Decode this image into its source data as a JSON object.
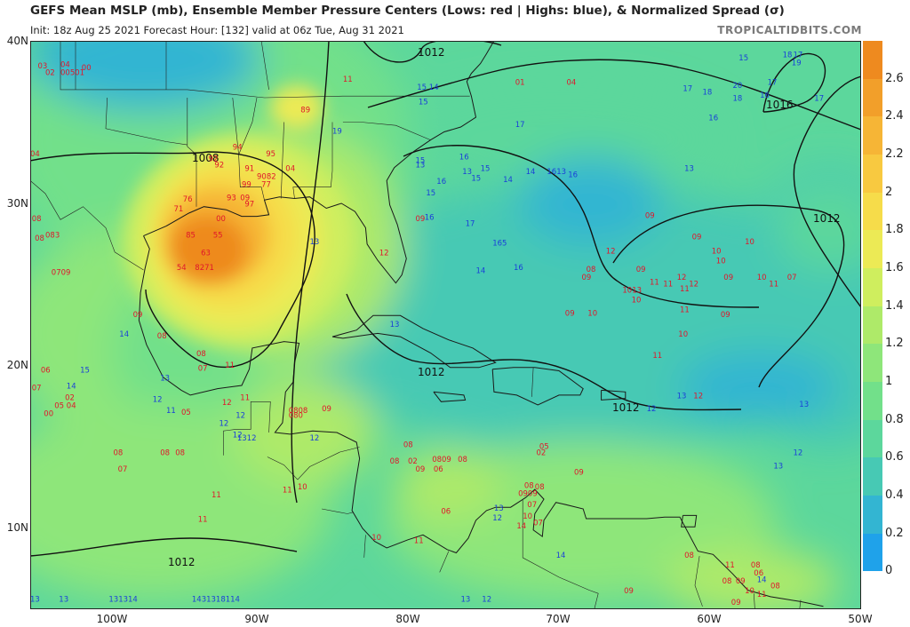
{
  "header": {
    "title": "GEFS Mean MSLP (mb), Ensemble Member Pressure Centers (Lows: red | Highs: blue), & Normalized Spread (σ)",
    "subtitle": "Init: 18z Aug 25 2021    Forecast Hour: [132]    valid at 06z Tue, Aug 31 2021",
    "brand": "TROPICALTIDBITS.COM"
  },
  "axes": {
    "lat_labels": [
      "40N",
      "30N",
      "20N",
      "10N"
    ],
    "lon_labels": [
      "100W",
      "90W",
      "80W",
      "70W",
      "60W",
      "50W"
    ]
  },
  "colorbar": {
    "labels": [
      "2.6",
      "2.4",
      "2.2",
      "2",
      "1.8",
      "1.6",
      "1.4",
      "1.2",
      "1",
      "0.8",
      "0.6",
      "0.4",
      "0.2",
      "0"
    ],
    "colors": [
      "#ee8a1f",
      "#f29f2a",
      "#f6b536",
      "#f8c940",
      "#f6dc4a",
      "#ecea55",
      "#cfee5e",
      "#aeea69",
      "#8ee67a",
      "#72e08a",
      "#5cd79c",
      "#47c9b4",
      "#33b5d2",
      "#1fa2ea",
      "#ffffff"
    ]
  },
  "isobars": [
    {
      "label": "1012",
      "where": "northeast of Carolinas"
    },
    {
      "label": "1008",
      "where": "central Gulf of Mexico"
    },
    {
      "label": "1016",
      "where": "northeast Atlantic high"
    },
    {
      "label": "1012",
      "where": "central Atlantic"
    },
    {
      "label": "1012",
      "where": "Caribbean north"
    },
    {
      "label": "1012",
      "where": "Caribbean east"
    },
    {
      "label": "1012",
      "where": "eastern Pacific"
    }
  ],
  "lows": [
    {
      "text": "03",
      "lon": -104.5,
      "lat": 38.3
    },
    {
      "text": "04",
      "lon": -103.0,
      "lat": 38.4
    },
    {
      "text": "00",
      "lon": -101.6,
      "lat": 38.2
    },
    {
      "text": "02",
      "lon": -104.0,
      "lat": 37.9
    },
    {
      "text": "00501",
      "lon": -103.0,
      "lat": 37.9
    },
    {
      "text": "04",
      "lon": -105.0,
      "lat": 32.9
    },
    {
      "text": "08",
      "lon": -104.9,
      "lat": 28.9
    },
    {
      "text": "083",
      "lon": -104.0,
      "lat": 27.9
    },
    {
      "text": "08",
      "lon": -104.7,
      "lat": 27.7
    },
    {
      "text": "0709",
      "lon": -103.6,
      "lat": 25.6
    },
    {
      "text": "11",
      "lon": -84.3,
      "lat": 37.5
    },
    {
      "text": "89",
      "lon": -87.1,
      "lat": 35.6
    },
    {
      "text": "01",
      "lon": -72.9,
      "lat": 37.3
    },
    {
      "text": "04",
      "lon": -69.5,
      "lat": 37.3
    },
    {
      "text": "94",
      "lon": -91.6,
      "lat": 33.3
    },
    {
      "text": "92",
      "lon": -93.2,
      "lat": 32.6
    },
    {
      "text": "92",
      "lon": -92.8,
      "lat": 32.2
    },
    {
      "text": "95",
      "lon": -89.4,
      "lat": 32.9
    },
    {
      "text": "91",
      "lon": -90.8,
      "lat": 32.0
    },
    {
      "text": "04",
      "lon": -88.1,
      "lat": 32.0
    },
    {
      "text": "9082",
      "lon": -90.0,
      "lat": 31.5
    },
    {
      "text": "99",
      "lon": -91.0,
      "lat": 31.0
    },
    {
      "text": "77",
      "lon": -89.7,
      "lat": 31.0
    },
    {
      "text": "76",
      "lon": -94.9,
      "lat": 30.1
    },
    {
      "text": "93",
      "lon": -92.0,
      "lat": 30.2
    },
    {
      "text": "09",
      "lon": -91.1,
      "lat": 30.2
    },
    {
      "text": "97",
      "lon": -90.8,
      "lat": 29.8
    },
    {
      "text": "71",
      "lon": -95.5,
      "lat": 29.5
    },
    {
      "text": "00",
      "lon": -92.7,
      "lat": 28.9
    },
    {
      "text": "85",
      "lon": -94.7,
      "lat": 27.9
    },
    {
      "text": "55",
      "lon": -92.9,
      "lat": 27.9
    },
    {
      "text": "63",
      "lon": -93.7,
      "lat": 26.8
    },
    {
      "text": "54",
      "lon": -95.3,
      "lat": 25.9
    },
    {
      "text": "8271",
      "lon": -94.1,
      "lat": 25.9
    },
    {
      "text": "09",
      "lon": -79.5,
      "lat": 28.9
    },
    {
      "text": "12",
      "lon": -81.9,
      "lat": 26.8
    },
    {
      "text": "09",
      "lon": -98.2,
      "lat": 23.0
    },
    {
      "text": "08",
      "lon": -96.6,
      "lat": 21.7
    },
    {
      "text": "08",
      "lon": -94.0,
      "lat": 20.6
    },
    {
      "text": "07",
      "lon": -93.9,
      "lat": 19.7
    },
    {
      "text": "11",
      "lon": -92.1,
      "lat": 19.9
    },
    {
      "text": "06",
      "lon": -104.3,
      "lat": 19.6
    },
    {
      "text": "07",
      "lon": -104.9,
      "lat": 18.5
    },
    {
      "text": "02",
      "lon": -102.7,
      "lat": 17.9
    },
    {
      "text": "05",
      "lon": -103.4,
      "lat": 17.4
    },
    {
      "text": "04",
      "lon": -102.6,
      "lat": 17.4
    },
    {
      "text": "00",
      "lon": -104.1,
      "lat": 16.9
    },
    {
      "text": "05",
      "lon": -95.0,
      "lat": 17.0
    },
    {
      "text": "12",
      "lon": -92.3,
      "lat": 17.6
    },
    {
      "text": "11",
      "lon": -91.1,
      "lat": 17.9
    },
    {
      "text": "08",
      "lon": -99.5,
      "lat": 14.5
    },
    {
      "text": "08",
      "lon": -96.4,
      "lat": 14.5
    },
    {
      "text": "08",
      "lon": -95.4,
      "lat": 14.5
    },
    {
      "text": "07",
      "lon": -99.2,
      "lat": 13.5
    },
    {
      "text": "11",
      "lon": -93.0,
      "lat": 11.9
    },
    {
      "text": "11",
      "lon": -88.3,
      "lat": 12.2
    },
    {
      "text": "10",
      "lon": -87.3,
      "lat": 12.4
    },
    {
      "text": "11",
      "lon": -93.9,
      "lat": 10.4
    },
    {
      "text": "0808",
      "lon": -87.9,
      "lat": 17.1
    },
    {
      "text": "09",
      "lon": -85.7,
      "lat": 17.2
    },
    {
      "text": "080",
      "lon": -87.9,
      "lat": 16.8
    },
    {
      "text": "08",
      "lon": -80.3,
      "lat": 15.0
    },
    {
      "text": "08",
      "lon": -81.2,
      "lat": 14.0
    },
    {
      "text": "02",
      "lon": -80.0,
      "lat": 14.0
    },
    {
      "text": "0809",
      "lon": -78.4,
      "lat": 14.1
    },
    {
      "text": "08",
      "lon": -76.7,
      "lat": 14.1
    },
    {
      "text": "09",
      "lon": -79.5,
      "lat": 13.5
    },
    {
      "text": "06",
      "lon": -78.3,
      "lat": 13.5
    },
    {
      "text": "06",
      "lon": -77.8,
      "lat": 10.9
    },
    {
      "text": "10",
      "lon": -82.4,
      "lat": 9.3
    },
    {
      "text": "11",
      "lon": -79.6,
      "lat": 9.1
    },
    {
      "text": "05",
      "lon": -71.3,
      "lat": 14.9
    },
    {
      "text": "02",
      "lon": -71.5,
      "lat": 14.5
    },
    {
      "text": "09",
      "lon": -69.0,
      "lat": 13.3
    },
    {
      "text": "08",
      "lon": -72.3,
      "lat": 12.5
    },
    {
      "text": "08",
      "lon": -71.6,
      "lat": 12.4
    },
    {
      "text": "0909",
      "lon": -72.7,
      "lat": 12.0
    },
    {
      "text": "07",
      "lon": -72.1,
      "lat": 11.3
    },
    {
      "text": "10",
      "lon": -72.4,
      "lat": 10.6
    },
    {
      "text": "07",
      "lon": -71.7,
      "lat": 10.2
    },
    {
      "text": "14",
      "lon": -72.8,
      "lat": 10.0
    },
    {
      "text": "08",
      "lon": -61.7,
      "lat": 8.2
    },
    {
      "text": "09",
      "lon": -65.7,
      "lat": 6.0
    },
    {
      "text": "11",
      "lon": -59.0,
      "lat": 7.6
    },
    {
      "text": "08",
      "lon": -57.3,
      "lat": 7.6
    },
    {
      "text": "06",
      "lon": -57.1,
      "lat": 7.1
    },
    {
      "text": "08",
      "lon": -59.2,
      "lat": 6.6
    },
    {
      "text": "09",
      "lon": -58.3,
      "lat": 6.6
    },
    {
      "text": "08",
      "lon": -56.0,
      "lat": 6.3
    },
    {
      "text": "10",
      "lon": -57.7,
      "lat": 6.0
    },
    {
      "text": "11",
      "lon": -56.9,
      "lat": 5.8
    },
    {
      "text": "09",
      "lon": -58.6,
      "lat": 5.3
    },
    {
      "text": "09",
      "lon": -64.3,
      "lat": 29.1
    },
    {
      "text": "09",
      "lon": -61.2,
      "lat": 27.8
    },
    {
      "text": "10",
      "lon": -57.7,
      "lat": 27.5
    },
    {
      "text": "10",
      "lon": -59.9,
      "lat": 26.9
    },
    {
      "text": "10",
      "lon": -59.6,
      "lat": 26.3
    },
    {
      "text": "12",
      "lon": -66.9,
      "lat": 26.9
    },
    {
      "text": "08",
      "lon": -68.2,
      "lat": 25.8
    },
    {
      "text": "09",
      "lon": -68.5,
      "lat": 25.3
    },
    {
      "text": "09",
      "lon": -64.9,
      "lat": 25.8
    },
    {
      "text": "12",
      "lon": -62.2,
      "lat": 25.3
    },
    {
      "text": "12",
      "lon": -61.4,
      "lat": 24.9
    },
    {
      "text": "09",
      "lon": -59.1,
      "lat": 25.3
    },
    {
      "text": "10",
      "lon": -56.9,
      "lat": 25.3
    },
    {
      "text": "11",
      "lon": -56.1,
      "lat": 24.9
    },
    {
      "text": "07",
      "lon": -54.9,
      "lat": 25.3
    },
    {
      "text": "1013",
      "lon": -65.8,
      "lat": 24.5
    },
    {
      "text": "11",
      "lon": -64.0,
      "lat": 25.0
    },
    {
      "text": "11",
      "lon": -63.1,
      "lat": 24.9
    },
    {
      "text": "11",
      "lon": -62.0,
      "lat": 24.6
    },
    {
      "text": "10",
      "lon": -65.2,
      "lat": 23.9
    },
    {
      "text": "11",
      "lon": -62.0,
      "lat": 23.3
    },
    {
      "text": "09",
      "lon": -59.3,
      "lat": 23.0
    },
    {
      "text": "09",
      "lon": -69.6,
      "lat": 23.1
    },
    {
      "text": "10",
      "lon": -68.1,
      "lat": 23.1
    },
    {
      "text": "10",
      "lon": -62.1,
      "lat": 21.8
    },
    {
      "text": "11",
      "lon": -63.8,
      "lat": 20.5
    },
    {
      "text": "12",
      "lon": -61.1,
      "lat": 18.0
    }
  ],
  "highs": [
    {
      "text": "15",
      "lon": -79.4,
      "lat": 37.0
    },
    {
      "text": "14",
      "lon": -78.6,
      "lat": 37.0
    },
    {
      "text": "15",
      "lon": -79.3,
      "lat": 36.1
    },
    {
      "text": "19",
      "lon": -85.0,
      "lat": 34.3
    },
    {
      "text": "15",
      "lon": -79.5,
      "lat": 32.5
    },
    {
      "text": "13",
      "lon": -79.5,
      "lat": 32.2
    },
    {
      "text": "17",
      "lon": -72.9,
      "lat": 34.7
    },
    {
      "text": "15",
      "lon": -58.1,
      "lat": 38.8
    },
    {
      "text": "18",
      "lon": -55.2,
      "lat": 39.0
    },
    {
      "text": "17",
      "lon": -54.5,
      "lat": 39.0
    },
    {
      "text": "19",
      "lon": -54.6,
      "lat": 38.5
    },
    {
      "text": "17",
      "lon": -61.8,
      "lat": 36.9
    },
    {
      "text": "18",
      "lon": -60.5,
      "lat": 36.7
    },
    {
      "text": "20",
      "lon": -58.5,
      "lat": 37.1
    },
    {
      "text": "17",
      "lon": -56.2,
      "lat": 37.3
    },
    {
      "text": "18",
      "lon": -58.5,
      "lat": 36.3
    },
    {
      "text": "16",
      "lon": -56.7,
      "lat": 36.5
    },
    {
      "text": "17",
      "lon": -53.1,
      "lat": 36.3
    },
    {
      "text": "16",
      "lon": -60.1,
      "lat": 35.1
    },
    {
      "text": "13",
      "lon": -61.7,
      "lat": 32.0
    },
    {
      "text": "16",
      "lon": -76.6,
      "lat": 32.7
    },
    {
      "text": "13",
      "lon": -76.4,
      "lat": 31.8
    },
    {
      "text": "15",
      "lon": -75.2,
      "lat": 32.0
    },
    {
      "text": "15",
      "lon": -75.8,
      "lat": 31.4
    },
    {
      "text": "14",
      "lon": -73.7,
      "lat": 31.3
    },
    {
      "text": "14",
      "lon": -72.2,
      "lat": 31.8
    },
    {
      "text": "1613",
      "lon": -70.8,
      "lat": 31.8
    },
    {
      "text": "16",
      "lon": -69.4,
      "lat": 31.6
    },
    {
      "text": "16",
      "lon": -78.1,
      "lat": 31.2
    },
    {
      "text": "15",
      "lon": -78.8,
      "lat": 30.5
    },
    {
      "text": "16",
      "lon": -78.9,
      "lat": 29.0
    },
    {
      "text": "17",
      "lon": -76.2,
      "lat": 28.6
    },
    {
      "text": "165",
      "lon": -74.4,
      "lat": 27.4
    },
    {
      "text": "16",
      "lon": -73.0,
      "lat": 25.9
    },
    {
      "text": "14",
      "lon": -75.5,
      "lat": 25.7
    },
    {
      "text": "13",
      "lon": -86.5,
      "lat": 27.5
    },
    {
      "text": "13",
      "lon": -81.2,
      "lat": 22.4
    },
    {
      "text": "14",
      "lon": -99.1,
      "lat": 21.8
    },
    {
      "text": "15",
      "lon": -101.7,
      "lat": 19.6
    },
    {
      "text": "13",
      "lon": -96.4,
      "lat": 19.1
    },
    {
      "text": "14",
      "lon": -102.6,
      "lat": 18.6
    },
    {
      "text": "12",
      "lon": -96.9,
      "lat": 17.8
    },
    {
      "text": "11",
      "lon": -96.0,
      "lat": 17.1
    },
    {
      "text": "12",
      "lon": -91.4,
      "lat": 16.8
    },
    {
      "text": "12",
      "lon": -92.5,
      "lat": 16.3
    },
    {
      "text": "12",
      "lon": -91.6,
      "lat": 15.6
    },
    {
      "text": "1312",
      "lon": -91.3,
      "lat": 15.4
    },
    {
      "text": "12",
      "lon": -86.5,
      "lat": 15.4
    },
    {
      "text": "13",
      "lon": -74.3,
      "lat": 11.1
    },
    {
      "text": "12",
      "lon": -74.4,
      "lat": 10.5
    },
    {
      "text": "14",
      "lon": -70.2,
      "lat": 8.2
    },
    {
      "text": "12",
      "lon": -75.1,
      "lat": 5.5
    },
    {
      "text": "13",
      "lon": -76.5,
      "lat": 5.5
    },
    {
      "text": "13",
      "lon": -105.0,
      "lat": 5.5
    },
    {
      "text": "13",
      "lon": -103.1,
      "lat": 5.5
    },
    {
      "text": "131314",
      "lon": -99.8,
      "lat": 5.5
    },
    {
      "text": "1431318114",
      "lon": -94.3,
      "lat": 5.5
    },
    {
      "text": "13",
      "lon": -62.2,
      "lat": 18.0
    },
    {
      "text": "12",
      "lon": -64.2,
      "lat": 17.2
    },
    {
      "text": "13",
      "lon": -54.1,
      "lat": 17.5
    },
    {
      "text": "12",
      "lon": -54.5,
      "lat": 14.5
    },
    {
      "text": "13",
      "lon": -55.8,
      "lat": 13.7
    },
    {
      "text": "14",
      "lon": -56.9,
      "lat": 6.7
    }
  ]
}
